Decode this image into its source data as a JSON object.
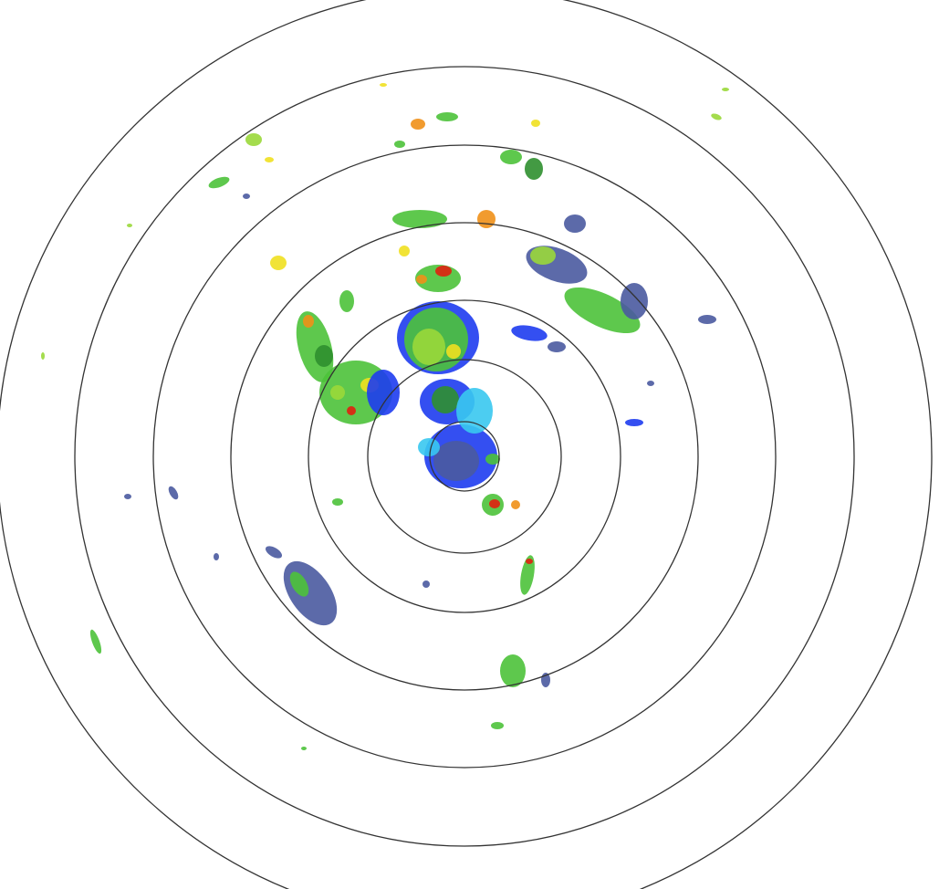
{
  "radar": {
    "ring_count": 7,
    "ring_color": "#333333",
    "background": "#ffffff",
    "reflectivity_colors": {
      "very_light": "#4a5aa0",
      "light_blue": "#1e3cf0",
      "cyan": "#38c8f0",
      "dark_green": "#2f8f2f",
      "green": "#4cc23a",
      "light_green": "#9ad83a",
      "yellow": "#f0e020",
      "orange": "#f09018",
      "red": "#e02010"
    }
  }
}
